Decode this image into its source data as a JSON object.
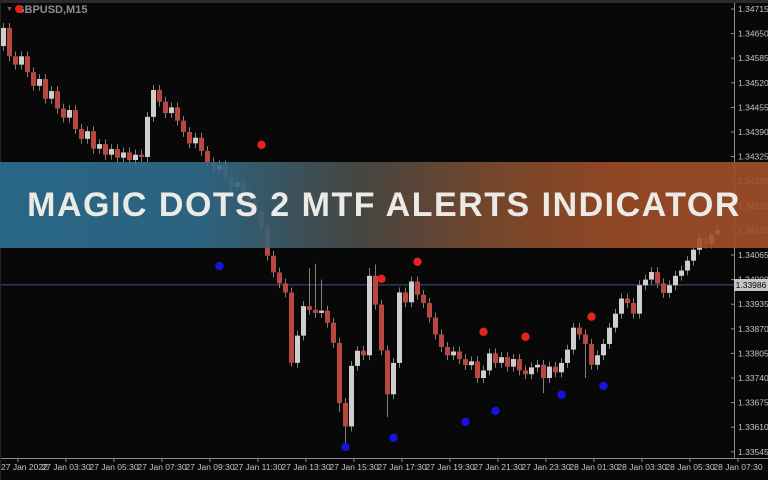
{
  "window": {
    "symbol": "GBPUSD,M15",
    "dropdown_icon": "▼"
  },
  "banner": {
    "title": "MAGIC DOTS 2 MTF ALERTS INDICATOR",
    "color_left": "#2c7094",
    "color_mid": "#4d4c48",
    "color_right": "#a3502a",
    "text_color": "#eceae6"
  },
  "price_axis": {
    "ticks": [
      "1.34715",
      "1.34650",
      "1.34585",
      "1.34520",
      "1.34455",
      "1.34390",
      "1.34325",
      "1.34260",
      "1.34195",
      "1.34130",
      "1.34065",
      "1.34000",
      "1.33935",
      "1.33870",
      "1.33805",
      "1.33740",
      "1.33675",
      "1.33610",
      "1.33545"
    ],
    "current_price_label": "1.33986"
  },
  "time_axis": {
    "labels": [
      "27 Jan 2022",
      "27 Jan 03:30",
      "27 Jan 05:30",
      "27 Jan 07:30",
      "27 Jan 09:30",
      "27 Jan 11:30",
      "27 Jan 13:30",
      "27 Jan 15:30",
      "27 Jan 17:30",
      "27 Jan 19:30",
      "27 Jan 21:30",
      "27 Jan 23:30",
      "28 Jan 01:30",
      "28 Jan 03:30",
      "28 Jan 05:30",
      "28 Jan 07:30"
    ]
  },
  "colors": {
    "bull": "#cfcfcf",
    "bear": "#b8483f",
    "wick": "#7f7f7f",
    "axis": "#8c8c8c",
    "axis_text": "#c4c4c4",
    "price_line": "#44527c",
    "red_dot": "#e3231c",
    "blue_dot": "#1414dd"
  },
  "chart_data": {
    "type": "candlestick",
    "title": "GBPUSD M15",
    "y_max": 1.34715,
    "y_min": 1.33545,
    "y_tick_step": 0.00065,
    "price_level": 1.33986,
    "candle_spacing": 6,
    "first_open": 1.34617,
    "default_wick": 0.00013,
    "closes": [
      1.34665,
      1.3459,
      1.34568,
      1.3459,
      1.34548,
      1.34512,
      1.3453,
      1.34478,
      1.34498,
      1.34452,
      1.34428,
      1.34448,
      1.34398,
      1.34372,
      1.34392,
      1.34346,
      1.34358,
      1.3433,
      1.34345,
      1.34322,
      1.34336,
      1.34316,
      1.3433,
      1.34324,
      1.3443,
      1.34501,
      1.3447,
      1.3444,
      1.34455,
      1.3442,
      1.3439,
      1.3436,
      1.34375,
      1.3434,
      1.3431,
      1.3429,
      1.34302,
      1.3427,
      1.34245,
      1.34258,
      1.34228,
      1.34211,
      1.3418,
      1.3414,
      1.34063,
      1.34019,
      1.3399,
      1.33966,
      1.3378,
      1.33852,
      1.3393,
      1.3392,
      1.33912,
      1.33918,
      1.33886,
      1.33833,
      1.33674,
      1.33612,
      1.33772,
      1.33812,
      1.338,
      1.3401,
      1.33934,
      1.33813,
      1.33697,
      1.3378,
      1.33966,
      1.3394,
      1.33995,
      1.3396,
      1.33938,
      1.339,
      1.33855,
      1.33822,
      1.338,
      1.3381,
      1.3379,
      1.33774,
      1.33784,
      1.3374,
      1.3376,
      1.33805,
      1.3378,
      1.33795,
      1.3377,
      1.3379,
      1.3376,
      1.3375,
      1.33768,
      1.33775,
      1.3374,
      1.3377,
      1.33755,
      1.3378,
      1.33815,
      1.33873,
      1.33855,
      1.3383,
      1.33775,
      1.338,
      1.3383,
      1.33873,
      1.3391,
      1.3395,
      1.33938,
      1.3391,
      1.33985,
      1.34,
      1.3402,
      1.3399,
      1.33965,
      1.33985,
      1.3401,
      1.34024,
      1.3405,
      1.34079,
      1.3411,
      1.34095,
      1.3412,
      1.34131
    ],
    "wick_overrides": {
      "48": {
        "l": 1.3377
      },
      "51": {
        "h": 1.3403
      },
      "52": {
        "h": 1.34042
      },
      "53": {
        "h": 1.34
      },
      "56": {
        "l": 1.3365
      },
      "57": {
        "l": 1.33552
      },
      "61": {
        "h": 1.34031
      },
      "62": {
        "h": 1.3404
      },
      "64": {
        "l": 1.33637
      },
      "90": {
        "l": 1.337
      },
      "97": {
        "l": 1.3374
      }
    },
    "red_dots": [
      {
        "i": 43,
        "p": 1.34356
      },
      {
        "i": 63,
        "p": 1.34002
      },
      {
        "i": 69,
        "p": 1.34047
      },
      {
        "i": 80,
        "p": 1.33862
      },
      {
        "i": 87,
        "p": 1.33849
      },
      {
        "i": 98,
        "p": 1.33902
      }
    ],
    "blue_dots": [
      {
        "i": 36,
        "p": 1.34036
      },
      {
        "i": 57,
        "p": 1.33558
      },
      {
        "i": 65,
        "p": 1.33582
      },
      {
        "i": 77,
        "p": 1.33624
      },
      {
        "i": 82,
        "p": 1.33653
      },
      {
        "i": 93,
        "p": 1.33696
      },
      {
        "i": 100,
        "p": 1.33719
      }
    ]
  }
}
